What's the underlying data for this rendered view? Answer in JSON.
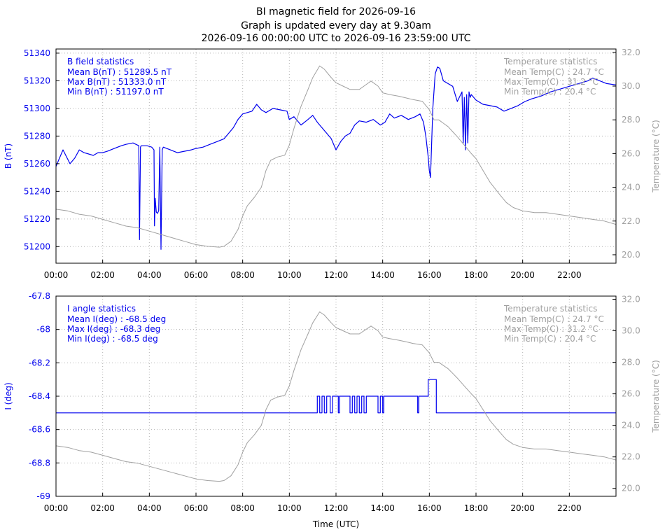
{
  "header": {
    "title_line1": "BI magnetic field for 2026-09-16",
    "title_line2": "Graph is updated every day at 9.30am",
    "title_line3": "2026-09-16 00:00:00 UTC to 2026-09-16 23:59:00 UTC"
  },
  "colors": {
    "field": "#0000ee",
    "temperature": "#a0a0a0",
    "grid": "#b4b4b4",
    "axis": "#000000"
  },
  "chart_data": [
    {
      "type": "line",
      "x_ticks": [
        "00:00",
        "02:00",
        "04:00",
        "06:00",
        "08:00",
        "10:00",
        "12:00",
        "14:00",
        "16:00",
        "18:00",
        "20:00",
        "22:00"
      ],
      "xlim": [
        0,
        24
      ],
      "ylabel": "B (nT)",
      "ylim": [
        51188,
        51343
      ],
      "y_ticks": [
        51200,
        51220,
        51240,
        51260,
        51280,
        51300,
        51320,
        51340
      ],
      "y2label": "Temperature (°C)",
      "y2lim": [
        19.5,
        32.2
      ],
      "y2_ticks": [
        "20.0",
        "22.0",
        "24.0",
        "26.0",
        "28.0",
        "30.0",
        "32.0"
      ],
      "grid": true,
      "stats_left": {
        "title": "B field statistics",
        "lines": [
          "Mean B(nT) : 51289.5 nT",
          "Max B(nT) : 51333.0 nT",
          "Min B(nT) : 51197.0 nT"
        ]
      },
      "stats_right": {
        "title": "Temperature statistics",
        "lines": [
          "Mean Temp(C) : 24.7 °C",
          "Max Temp(C) : 31.2 °C",
          "Min Temp(C) : 20.4 °C"
        ]
      },
      "series": [
        {
          "axis": "left",
          "x": [
            0,
            0.1,
            0.3,
            0.45,
            0.6,
            0.8,
            1.0,
            1.2,
            1.4,
            1.6,
            1.8,
            2.0,
            2.2,
            2.5,
            2.8,
            3.0,
            3.3,
            3.55,
            3.58,
            3.62,
            3.65,
            3.9,
            4.1,
            4.2,
            4.22,
            4.25,
            4.3,
            4.35,
            4.4,
            4.45,
            4.5,
            4.55,
            4.6,
            4.9,
            5.2,
            5.5,
            5.8,
            6.0,
            6.3,
            6.6,
            6.9,
            7.2,
            7.4,
            7.6,
            7.8,
            8.0,
            8.2,
            8.4,
            8.6,
            8.8,
            9.0,
            9.3,
            9.6,
            9.9,
            10.0,
            10.2,
            10.5,
            10.8,
            11.0,
            11.2,
            11.4,
            11.6,
            11.8,
            12.0,
            12.2,
            12.4,
            12.6,
            12.8,
            13.0,
            13.3,
            13.6,
            13.9,
            14.1,
            14.3,
            14.5,
            14.8,
            15.1,
            15.4,
            15.6,
            15.75,
            15.85,
            15.95,
            16.0,
            16.05,
            16.15,
            16.25,
            16.35,
            16.45,
            16.6,
            16.8,
            17.0,
            17.2,
            17.4,
            17.45,
            17.5,
            17.55,
            17.6,
            17.65,
            17.7,
            17.75,
            17.8,
            18.0,
            18.3,
            18.6,
            18.9,
            19.2,
            19.5,
            19.8,
            20.1,
            20.4,
            20.8,
            21.2,
            21.6,
            22.0,
            22.4,
            22.8,
            23.0,
            23.3,
            23.6,
            24.0
          ],
          "y": [
            51258,
            51262,
            51270,
            51265,
            51260,
            51264,
            51270,
            51268,
            51267,
            51266,
            51268,
            51268,
            51269,
            51271,
            51273,
            51274,
            51275,
            51273,
            51205,
            51272,
            51273,
            51273,
            51272,
            51270,
            51215,
            51235,
            51225,
            51224,
            51226,
            51272,
            51198,
            51270,
            51272,
            51270,
            51268,
            51269,
            51270,
            51271,
            51272,
            51274,
            51276,
            51278,
            51282,
            51286,
            51292,
            51296,
            51297,
            51298,
            51303,
            51299,
            51297,
            51300,
            51299,
            51298,
            51292,
            51294,
            51288,
            51292,
            51295,
            51290,
            51286,
            51282,
            51278,
            51270,
            51276,
            51280,
            51282,
            51288,
            51291,
            51290,
            51292,
            51288,
            51290,
            51296,
            51293,
            51295,
            51292,
            51294,
            51296,
            51290,
            51280,
            51265,
            51255,
            51250,
            51300,
            51325,
            51330,
            51329,
            51320,
            51318,
            51316,
            51305,
            51312,
            51275,
            51308,
            51270,
            51310,
            51275,
            51312,
            51308,
            51310,
            51306,
            51303,
            51302,
            51301,
            51298,
            51300,
            51302,
            51305,
            51307,
            51309,
            51312,
            51314,
            51316,
            51318,
            51320,
            51322,
            51320,
            51318,
            51317
          ]
        },
        {
          "axis": "right",
          "x": [
            0,
            0.5,
            1.0,
            1.5,
            2.0,
            2.5,
            3.0,
            3.5,
            4.0,
            4.5,
            5.0,
            5.5,
            6.0,
            6.5,
            7.0,
            7.2,
            7.5,
            7.8,
            8.0,
            8.2,
            8.5,
            8.8,
            9.0,
            9.2,
            9.5,
            9.8,
            10.0,
            10.2,
            10.5,
            10.8,
            11.0,
            11.3,
            11.5,
            11.8,
            12.0,
            12.3,
            12.6,
            13.0,
            13.3,
            13.5,
            13.8,
            14.0,
            14.3,
            14.7,
            15.0,
            15.3,
            15.7,
            16.0,
            16.2,
            16.4,
            16.6,
            16.8,
            17.0,
            17.2,
            17.5,
            17.8,
            18.0,
            18.3,
            18.6,
            19.0,
            19.3,
            19.6,
            20.0,
            20.5,
            21.0,
            21.5,
            22.0,
            22.5,
            23.0,
            23.5,
            24.0
          ],
          "y": [
            22.7,
            22.6,
            22.4,
            22.3,
            22.1,
            21.9,
            21.7,
            21.6,
            21.4,
            21.2,
            21.0,
            20.8,
            20.6,
            20.5,
            20.45,
            20.5,
            20.8,
            21.5,
            22.3,
            22.9,
            23.4,
            24.0,
            25.0,
            25.6,
            25.8,
            25.9,
            26.5,
            27.5,
            28.8,
            29.8,
            30.5,
            31.2,
            31.0,
            30.5,
            30.2,
            30.0,
            29.8,
            29.8,
            30.1,
            30.3,
            30.0,
            29.6,
            29.5,
            29.4,
            29.3,
            29.2,
            29.1,
            28.6,
            28.0,
            28.0,
            27.8,
            27.6,
            27.3,
            27.0,
            26.5,
            26.0,
            25.7,
            25.0,
            24.3,
            23.6,
            23.1,
            22.8,
            22.6,
            22.5,
            22.5,
            22.4,
            22.3,
            22.2,
            22.1,
            22.0,
            21.8
          ]
        }
      ]
    },
    {
      "type": "line",
      "x_ticks": [
        "00:00",
        "02:00",
        "04:00",
        "06:00",
        "08:00",
        "10:00",
        "12:00",
        "14:00",
        "16:00",
        "18:00",
        "20:00",
        "22:00"
      ],
      "xlim": [
        0,
        24
      ],
      "xlabel": "Time (UTC)",
      "ylabel": "I (deg)",
      "ylim": [
        -69.0,
        -67.8
      ],
      "y_ticks": [
        "-67.8",
        "-68",
        "-68.2",
        "-68.4",
        "-68.6",
        "-68.8",
        "-69"
      ],
      "y2label": "Temperature (°C)",
      "y2lim": [
        19.5,
        32.2
      ],
      "y2_ticks": [
        "20.0",
        "22.0",
        "24.0",
        "26.0",
        "28.0",
        "30.0",
        "32.0"
      ],
      "grid": true,
      "stats_left": {
        "title": "I angle statistics",
        "lines": [
          "Mean I(deg) : -68.5 deg",
          "Max I(deg) : -68.3 deg",
          "Min I(deg) : -68.5 deg"
        ]
      },
      "stats_right": {
        "title": "Temperature statistics",
        "lines": [
          "Mean Temp(C) : 24.7 °C",
          "Max Temp(C) : 31.2 °C",
          "Min Temp(C) : 20.4 °C"
        ]
      },
      "series": [
        {
          "axis": "left",
          "x": [
            0,
            11.2,
            11.2,
            11.3,
            11.3,
            11.4,
            11.4,
            11.5,
            11.5,
            11.6,
            11.6,
            11.75,
            11.75,
            11.85,
            11.85,
            12.1,
            12.1,
            12.15,
            12.15,
            12.6,
            12.6,
            12.7,
            12.7,
            12.8,
            12.8,
            12.9,
            12.9,
            13.0,
            13.0,
            13.1,
            13.1,
            13.2,
            13.2,
            13.3,
            13.3,
            13.8,
            13.8,
            13.9,
            13.9,
            14.0,
            14.0,
            14.05,
            14.05,
            15.5,
            15.5,
            15.55,
            15.55,
            15.6,
            15.6,
            15.95,
            15.95,
            16.3,
            16.3,
            24.0
          ],
          "y": [
            -68.5,
            -68.5,
            -68.4,
            -68.4,
            -68.5,
            -68.5,
            -68.4,
            -68.4,
            -68.5,
            -68.5,
            -68.4,
            -68.4,
            -68.5,
            -68.5,
            -68.4,
            -68.4,
            -68.5,
            -68.5,
            -68.4,
            -68.4,
            -68.5,
            -68.5,
            -68.4,
            -68.4,
            -68.5,
            -68.5,
            -68.4,
            -68.4,
            -68.5,
            -68.5,
            -68.4,
            -68.4,
            -68.5,
            -68.5,
            -68.4,
            -68.4,
            -68.5,
            -68.5,
            -68.4,
            -68.4,
            -68.5,
            -68.5,
            -68.4,
            -68.4,
            -68.5,
            -68.5,
            -68.4,
            -68.4,
            -68.4,
            -68.4,
            -68.3,
            -68.3,
            -68.5,
            -68.5
          ]
        },
        {
          "axis": "right",
          "x": [
            0,
            0.5,
            1.0,
            1.5,
            2.0,
            2.5,
            3.0,
            3.5,
            4.0,
            4.5,
            5.0,
            5.5,
            6.0,
            6.5,
            7.0,
            7.2,
            7.5,
            7.8,
            8.0,
            8.2,
            8.5,
            8.8,
            9.0,
            9.2,
            9.5,
            9.8,
            10.0,
            10.2,
            10.5,
            10.8,
            11.0,
            11.3,
            11.5,
            11.8,
            12.0,
            12.3,
            12.6,
            13.0,
            13.3,
            13.5,
            13.8,
            14.0,
            14.3,
            14.7,
            15.0,
            15.3,
            15.7,
            16.0,
            16.2,
            16.4,
            16.6,
            16.8,
            17.0,
            17.2,
            17.5,
            17.8,
            18.0,
            18.3,
            18.6,
            19.0,
            19.3,
            19.6,
            20.0,
            20.5,
            21.0,
            21.5,
            22.0,
            22.5,
            23.0,
            23.5,
            24.0
          ],
          "y": [
            22.7,
            22.6,
            22.4,
            22.3,
            22.1,
            21.9,
            21.7,
            21.6,
            21.4,
            21.2,
            21.0,
            20.8,
            20.6,
            20.5,
            20.45,
            20.5,
            20.8,
            21.5,
            22.3,
            22.9,
            23.4,
            24.0,
            25.0,
            25.6,
            25.8,
            25.9,
            26.5,
            27.5,
            28.8,
            29.8,
            30.5,
            31.2,
            31.0,
            30.5,
            30.2,
            30.0,
            29.8,
            29.8,
            30.1,
            30.3,
            30.0,
            29.6,
            29.5,
            29.4,
            29.3,
            29.2,
            29.1,
            28.6,
            28.0,
            28.0,
            27.8,
            27.6,
            27.3,
            27.0,
            26.5,
            26.0,
            25.7,
            25.0,
            24.3,
            23.6,
            23.1,
            22.8,
            22.6,
            22.5,
            22.5,
            22.4,
            22.3,
            22.2,
            22.1,
            22.0,
            21.8
          ]
        }
      ]
    }
  ]
}
